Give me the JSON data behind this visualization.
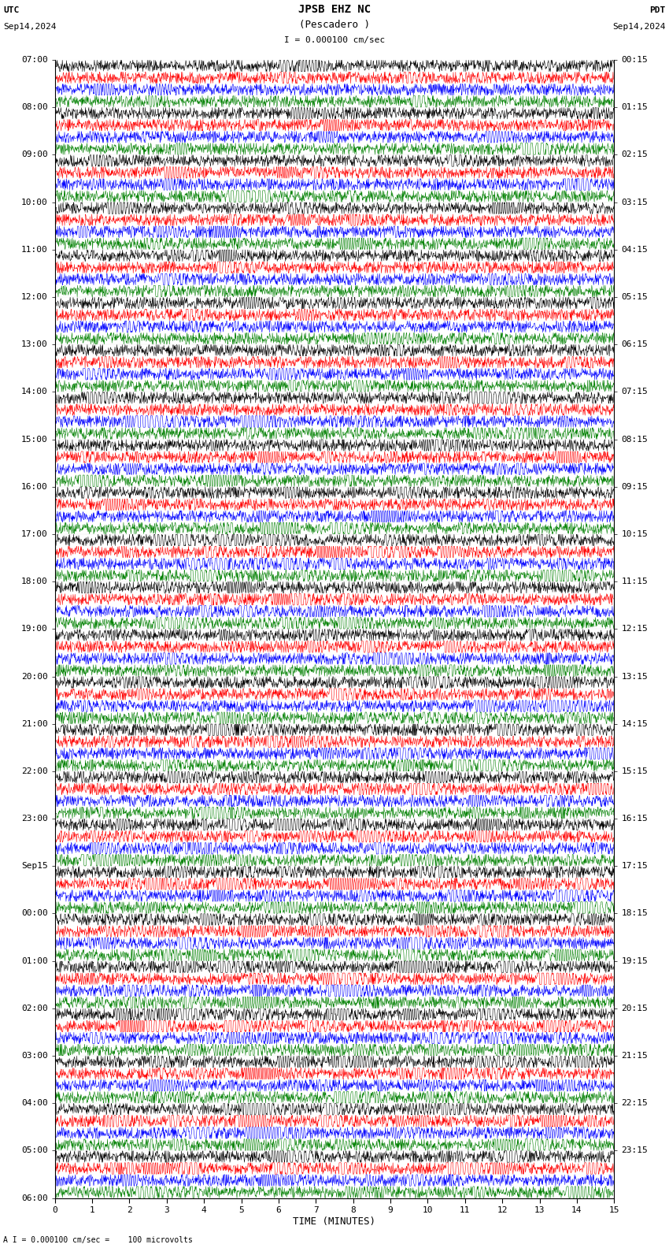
{
  "title_line1": "JPSB EHZ NC",
  "title_line2": "(Pescadero )",
  "scale_text": "I = 0.000100 cm/sec",
  "footer_text": "A I = 0.000100 cm/sec =    100 microvolts",
  "utc_label": "UTC",
  "pdt_label": "PDT",
  "date_left": "Sep14,2024",
  "date_right": "Sep14,2024",
  "xlabel": "TIME (MINUTES)",
  "xmin": 0,
  "xmax": 15,
  "channel_colors": [
    "black",
    "red",
    "blue",
    "green"
  ],
  "left_times": [
    "07:00",
    "08:00",
    "09:00",
    "10:00",
    "11:00",
    "12:00",
    "13:00",
    "14:00",
    "15:00",
    "16:00",
    "17:00",
    "18:00",
    "19:00",
    "20:00",
    "21:00",
    "22:00",
    "23:00",
    "Sep15\n00:00",
    "01:00",
    "02:00",
    "03:00",
    "04:00",
    "05:00",
    "06:00"
  ],
  "left_times_display": [
    "07:00",
    "08:00",
    "09:00",
    "10:00",
    "11:00",
    "12:00",
    "13:00",
    "14:00",
    "15:00",
    "16:00",
    "17:00",
    "18:00",
    "19:00",
    "20:00",
    "21:00",
    "22:00",
    "23:00",
    "Sep15",
    "00:00",
    "01:00",
    "02:00",
    "03:00",
    "04:00",
    "05:00",
    "06:00"
  ],
  "right_times": [
    "00:15",
    "01:15",
    "02:15",
    "03:15",
    "04:15",
    "05:15",
    "06:15",
    "07:15",
    "08:15",
    "09:15",
    "10:15",
    "11:15",
    "12:15",
    "13:15",
    "14:15",
    "15:15",
    "16:15",
    "17:15",
    "18:15",
    "19:15",
    "20:15",
    "21:15",
    "22:15",
    "23:15"
  ],
  "n_hours": 24,
  "n_channels": 4,
  "bg_color": "white",
  "figure_width": 8.5,
  "figure_height": 15.84,
  "dpi": 100,
  "seed": 42
}
